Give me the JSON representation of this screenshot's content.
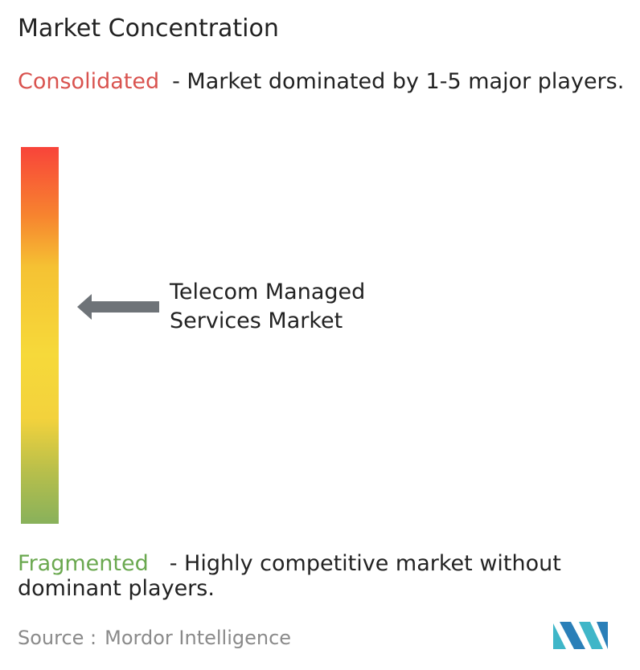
{
  "title": "Market Concentration",
  "consolidated": {
    "term": "Consolidated",
    "description": "- Market dominated by 1-5 major players."
  },
  "marker": {
    "label_lines": [
      "Telecom Managed",
      "Services Market"
    ]
  },
  "fragmented": {
    "term": "Fragmented",
    "description": "- Highly competitive market without dominant players."
  },
  "source": {
    "prefix": "Source :",
    "name": "Mordor Intelligence"
  }
}
